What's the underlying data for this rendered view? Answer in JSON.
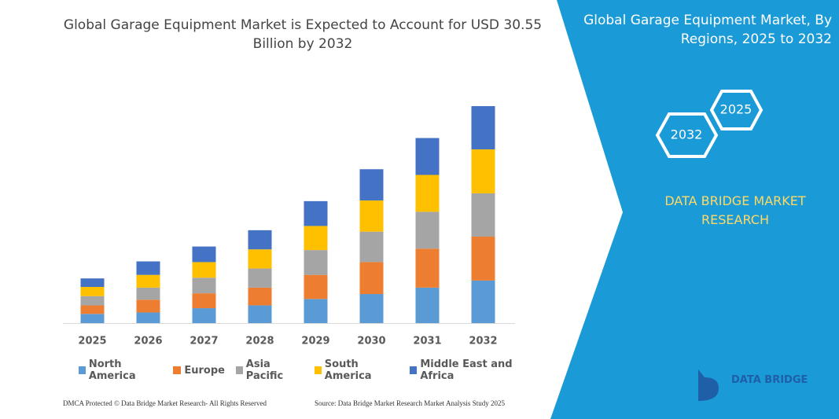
{
  "chart_data": {
    "type": "bar",
    "stacked": true,
    "title": "Global Garage Equipment Market is Expected to Account for USD 30.55 Billion by 2032",
    "categories": [
      "2025",
      "2026",
      "2027",
      "2028",
      "2029",
      "2030",
      "2031",
      "2032"
    ],
    "series": [
      {
        "name": "North America",
        "color": "#5b9bd5",
        "values": [
          1.3,
          1.5,
          2.1,
          2.5,
          3.4,
          4.1,
          5.0,
          6.0
        ]
      },
      {
        "name": "Europe",
        "color": "#ed7d31",
        "values": [
          1.2,
          1.8,
          2.1,
          2.5,
          3.4,
          4.5,
          5.5,
          6.2
        ]
      },
      {
        "name": "Asia Pacific",
        "color": "#a5a5a5",
        "values": [
          1.3,
          1.7,
          2.2,
          2.7,
          3.5,
          4.3,
          5.2,
          6.1
        ]
      },
      {
        "name": "South America",
        "color": "#ffc000",
        "values": [
          1.3,
          1.8,
          2.2,
          2.7,
          3.4,
          4.4,
          5.2,
          6.2
        ]
      },
      {
        "name": "Middle East and Africa",
        "color": "#4472c4",
        "values": [
          1.2,
          1.9,
          2.2,
          2.7,
          3.5,
          4.4,
          5.2,
          6.1
        ]
      }
    ]
  },
  "side_panel": {
    "title": "Global Garage Equipment Market, By Regions, 2025 to 2032",
    "hexagons": [
      "2025",
      "2032"
    ],
    "brand": "DATA BRIDGE MARKET RESEARCH",
    "logo": "DATA BRIDGE"
  },
  "footer": {
    "left": "DMCA Protected © Data Bridge Market Research- All Rights Reserved",
    "right": "Source: Data Bridge Market Research Market Analysis Study 2025"
  }
}
